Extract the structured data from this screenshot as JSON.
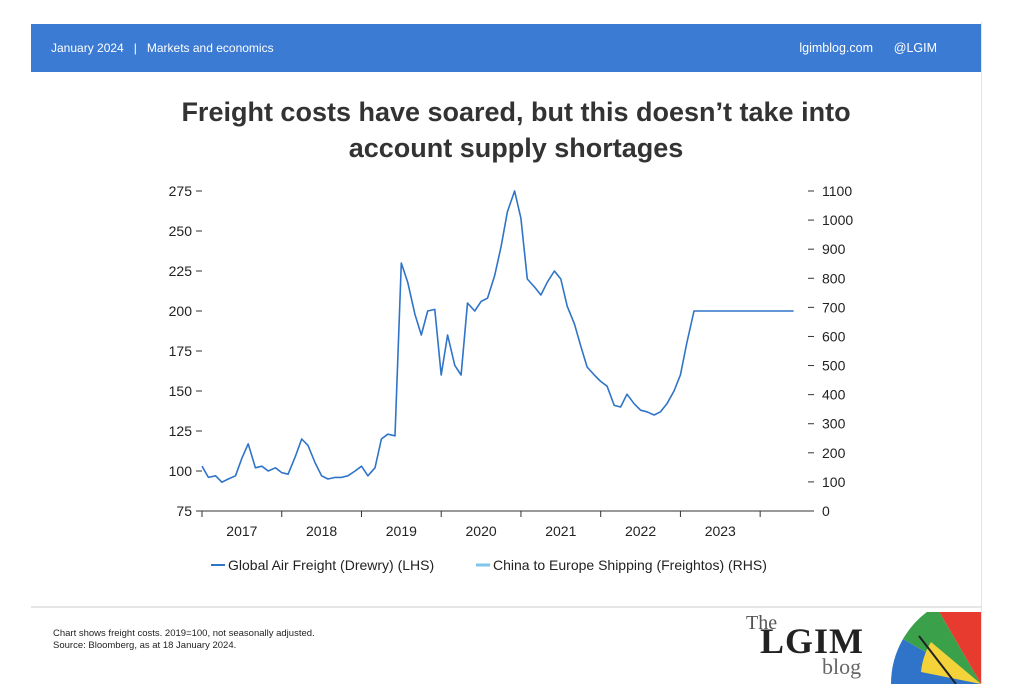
{
  "header": {
    "date": "January 2024",
    "section": "Markets and economics",
    "site": "lgimblog.com",
    "handle": "@LGIM"
  },
  "title_line1": "Freight costs have soared, but this doesn’t take into",
  "title_line2": "account supply shortages",
  "footer": {
    "note_line1": "Chart shows freight costs. 2019=100, not seasonally adjusted.",
    "note_line2": "Source: Bloomberg, as at 18 January 2024.",
    "brand_the": "The",
    "brand_name": "LGIM",
    "brand_blog": "blog"
  },
  "colors": {
    "header_bg": "#3b7bd3",
    "air": "#2f74c9",
    "sea": "#7ec6ec"
  },
  "chart_data": {
    "type": "line",
    "title": "Freight costs have soared, but this doesn’t take into account supply shortages",
    "x_tick_labels": [
      "2017",
      "2018",
      "2019",
      "2020",
      "2021",
      "2022",
      "2023"
    ],
    "xlim": [
      2016.5,
      2024.1
    ],
    "y_left": {
      "lim": [
        75,
        275
      ],
      "ticks": [
        75,
        100,
        125,
        150,
        175,
        200,
        225,
        250,
        275
      ]
    },
    "y_right": {
      "lim": [
        0,
        1100
      ],
      "ticks": [
        0,
        100,
        200,
        300,
        400,
        500,
        600,
        700,
        800,
        900,
        1000,
        1100
      ]
    },
    "grid": false,
    "legend_position": "bottom",
    "series": [
      {
        "name": "Global Air Freight (Drewry) (LHS)",
        "axis": "left",
        "x": [
          2016.5,
          2016.58,
          2016.67,
          2016.75,
          2016.83,
          2016.92,
          2017.0,
          2017.08,
          2017.17,
          2017.25,
          2017.33,
          2017.42,
          2017.5,
          2017.58,
          2017.67,
          2017.75,
          2017.83,
          2017.92,
          2018.0,
          2018.08,
          2018.17,
          2018.25,
          2018.33,
          2018.42,
          2018.5,
          2018.58,
          2018.67,
          2018.75,
          2018.83,
          2018.92,
          2019.0,
          2019.08,
          2019.17,
          2019.25,
          2019.33,
          2019.42,
          2019.5,
          2019.58,
          2019.67,
          2019.75,
          2019.83,
          2019.92,
          2020.0,
          2020.08,
          2020.17,
          2020.25,
          2020.33,
          2020.42,
          2020.5,
          2020.58,
          2020.67,
          2020.75,
          2020.83,
          2020.92,
          2021.0,
          2021.08,
          2021.17,
          2021.25,
          2021.33,
          2021.42,
          2021.5,
          2021.58,
          2021.67,
          2021.75,
          2021.83,
          2021.92,
          2022.0,
          2022.08,
          2022.17,
          2022.25,
          2022.33,
          2022.42,
          2022.5,
          2022.58,
          2022.67,
          2022.75,
          2022.83,
          2022.92,
          2023.0,
          2023.08,
          2023.17,
          2023.25,
          2023.33,
          2023.42,
          2023.5,
          2023.58,
          2023.67,
          2023.75,
          2023.83,
          2023.92
        ],
        "y": [
          103,
          96,
          97,
          93,
          95,
          97,
          108,
          117,
          102,
          103,
          100,
          102,
          99,
          98,
          109,
          120,
          116,
          105,
          97,
          95,
          96,
          96,
          97,
          100,
          103,
          97,
          102,
          120,
          123,
          122,
          230,
          218,
          198,
          185,
          200,
          201,
          160,
          185,
          166,
          160,
          205,
          200,
          206,
          208,
          222,
          240,
          262,
          275,
          258,
          220,
          215,
          210,
          218,
          225,
          220,
          203,
          192,
          178,
          165,
          160,
          156,
          153,
          141,
          140,
          148,
          142,
          138,
          137,
          135,
          137,
          142,
          150,
          160,
          180,
          200,
          200,
          200,
          200,
          200,
          200,
          200,
          200,
          200,
          200,
          200,
          200,
          200,
          200,
          200,
          200
        ]
      },
      {
        "name": "China to Europe Shipping (Freightos) (RHS)",
        "axis": "right",
        "x": [],
        "y": []
      }
    ]
  }
}
